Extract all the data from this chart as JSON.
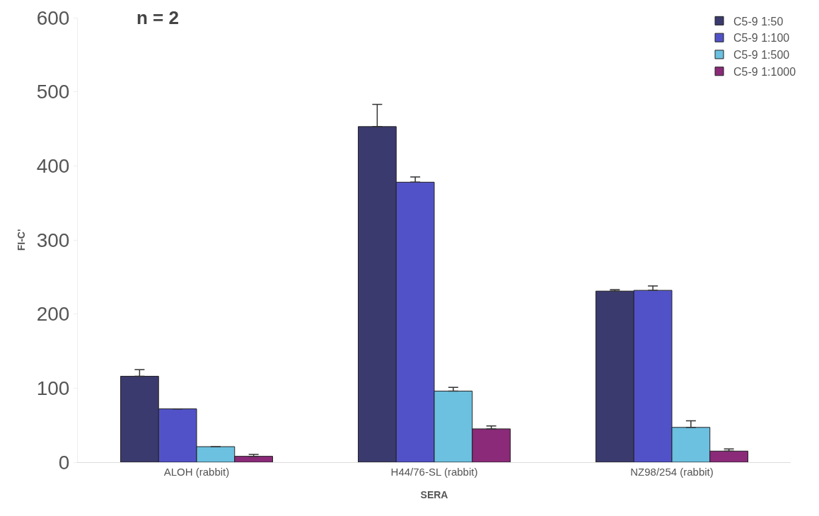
{
  "chart_data": {
    "type": "bar",
    "categories": [
      "ALOH (rabbit)",
      "H44/76-SL (rabbit)",
      "NZ98/254 (rabbit)"
    ],
    "series": [
      {
        "name": "C5-9 1:50",
        "color": "#3b3a6e",
        "values": [
          116,
          453,
          231
        ],
        "errors": [
          9,
          30,
          2
        ]
      },
      {
        "name": "C5-9 1:100",
        "color": "#5252c8",
        "values": [
          72,
          378,
          232
        ],
        "errors": [
          null,
          7,
          6
        ]
      },
      {
        "name": "C5-9 1:500",
        "color": "#6cc0e0",
        "values": [
          21,
          96,
          47
        ],
        "errors": [
          null,
          5,
          9
        ]
      },
      {
        "name": "C5-9 1:1000",
        "color": "#8a2a78",
        "values": [
          8,
          45,
          15
        ],
        "errors": [
          2.5,
          4,
          3
        ]
      }
    ],
    "xlabel": "SERA",
    "ylabel": "FI-C'",
    "annotations": [
      "n = 2"
    ],
    "ylim": [
      0,
      600
    ],
    "yticks": [
      0,
      100,
      200,
      300,
      400,
      500,
      600
    ],
    "grid": false,
    "legend": "top right"
  }
}
